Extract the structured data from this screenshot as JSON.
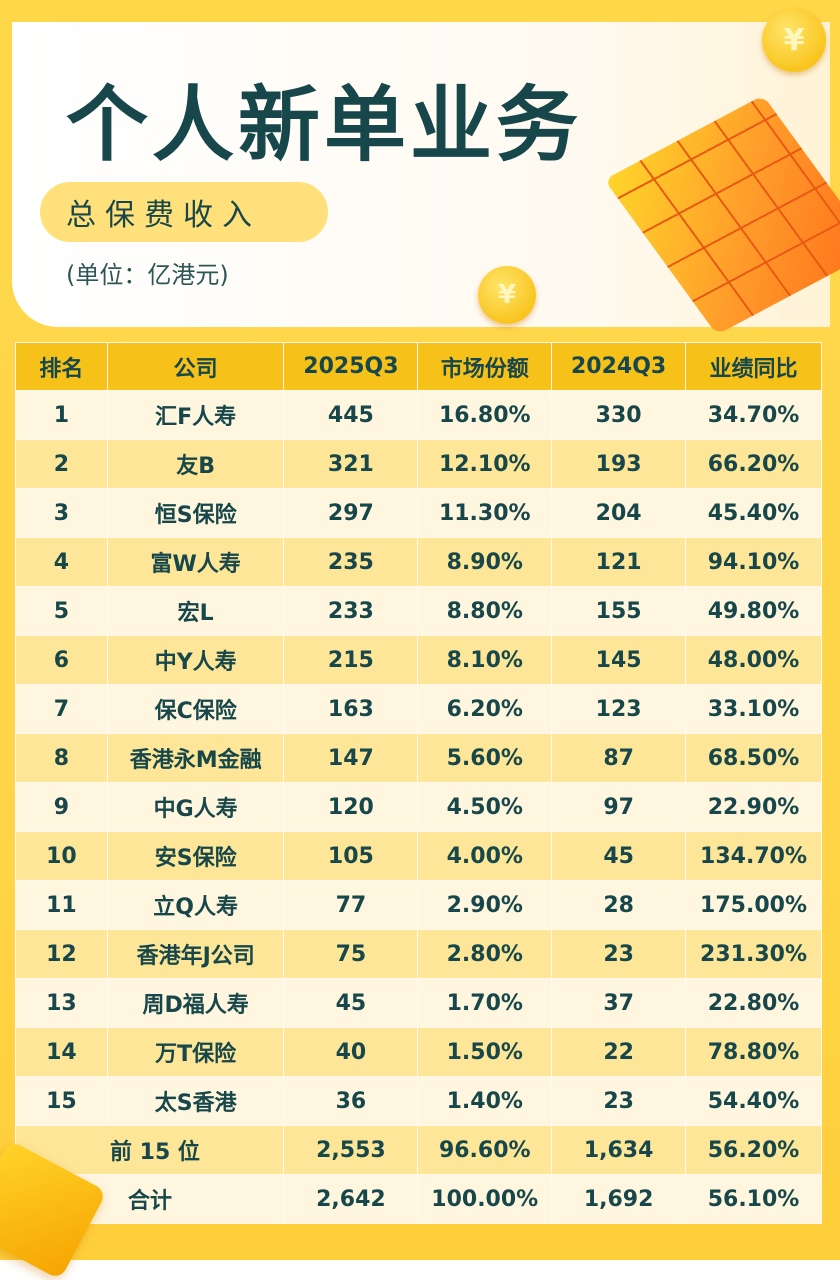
{
  "header": {
    "title": "个人新单业务",
    "subtitle": "总保费收入",
    "unit": "(单位：亿港元)"
  },
  "decor": {
    "coin_symbol": "¥",
    "colors": {
      "title": "#17474a",
      "header_bg": "#f6c21a",
      "row_light": "#fff6df",
      "row_dark": "#fde698",
      "frame": "#ffd54a"
    }
  },
  "table": {
    "columns": [
      "排名",
      "公司",
      "2025Q3",
      "市场份额",
      "2024Q3",
      "业绩同比"
    ],
    "rows": [
      [
        "1",
        "汇F人寿",
        "445",
        "16.80%",
        "330",
        "34.70%"
      ],
      [
        "2",
        "友B",
        "321",
        "12.10%",
        "193",
        "66.20%"
      ],
      [
        "3",
        "恒S保险",
        "297",
        "11.30%",
        "204",
        "45.40%"
      ],
      [
        "4",
        "富W人寿",
        "235",
        "8.90%",
        "121",
        "94.10%"
      ],
      [
        "5",
        "宏L",
        "233",
        "8.80%",
        "155",
        "49.80%"
      ],
      [
        "6",
        "中Y人寿",
        "215",
        "8.10%",
        "145",
        "48.00%"
      ],
      [
        "7",
        "保C保险",
        "163",
        "6.20%",
        "123",
        "33.10%"
      ],
      [
        "8",
        "香港永M金融",
        "147",
        "5.60%",
        "87",
        "68.50%"
      ],
      [
        "9",
        "中G人寿",
        "120",
        "4.50%",
        "97",
        "22.90%"
      ],
      [
        "10",
        "安S保险",
        "105",
        "4.00%",
        "45",
        "134.70%"
      ],
      [
        "11",
        "立Q人寿",
        "77",
        "2.90%",
        "28",
        "175.00%"
      ],
      [
        "12",
        "香港年J公司",
        "75",
        "2.80%",
        "23",
        "231.30%"
      ],
      [
        "13",
        "周D福人寿",
        "45",
        "1.70%",
        "37",
        "22.80%"
      ],
      [
        "14",
        "万T保险",
        "40",
        "1.50%",
        "22",
        "78.80%"
      ],
      [
        "15",
        "太S香港",
        "36",
        "1.40%",
        "23",
        "54.40%"
      ]
    ],
    "totals": [
      [
        "前 15 位",
        "2,553",
        "96.60%",
        "1,634",
        "56.20%"
      ],
      [
        "合计",
        "2,642",
        "100.00%",
        "1,692",
        "56.10%"
      ]
    ]
  }
}
